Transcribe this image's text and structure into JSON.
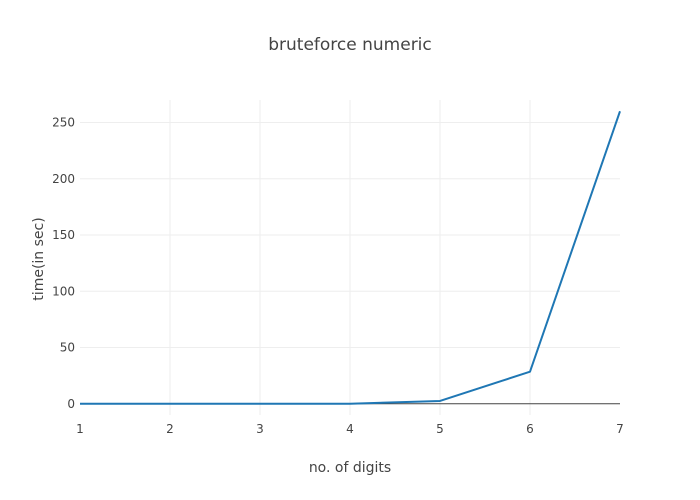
{
  "chart_data": {
    "type": "line",
    "title": "bruteforce numeric",
    "xlabel": "no. of digits",
    "ylabel": "time(in sec)",
    "xlim": [
      1,
      7
    ],
    "ylim": [
      -10,
      270
    ],
    "xticks": [
      1,
      2,
      3,
      4,
      5,
      6,
      7
    ],
    "yticks": [
      0,
      50,
      100,
      150,
      200,
      250
    ],
    "grid": true,
    "series": [
      {
        "color": "#1f77b4",
        "x": [
          1,
          2,
          3,
          4,
          5,
          6,
          7
        ],
        "y": [
          0,
          0,
          0,
          0.05,
          2.5,
          28.5,
          260
        ]
      }
    ]
  }
}
